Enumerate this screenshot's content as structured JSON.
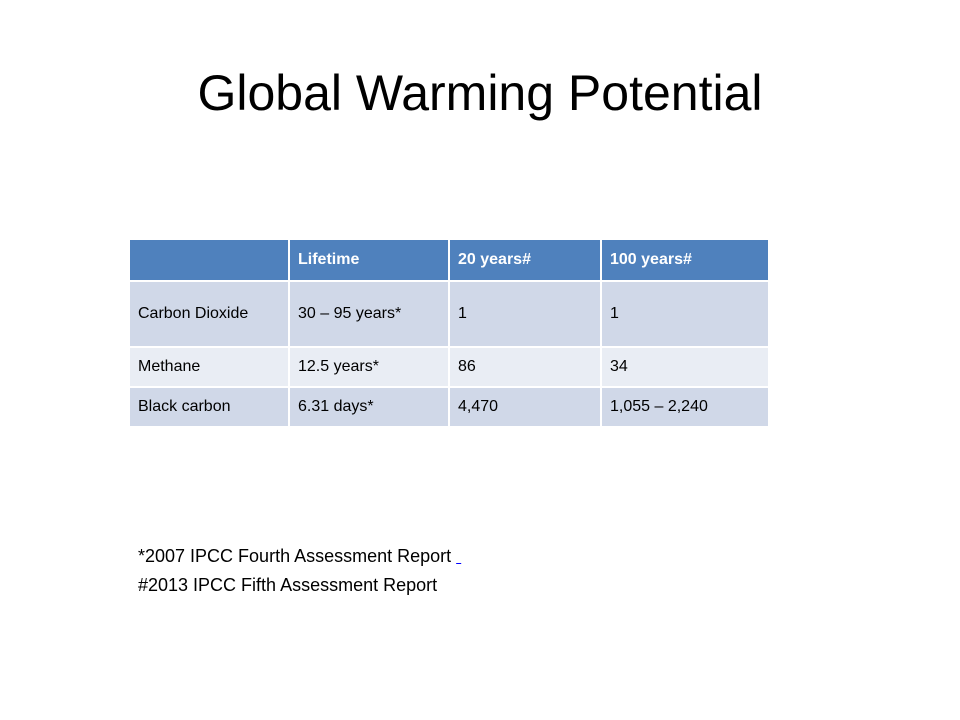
{
  "slide": {
    "title": "Global Warming Potential"
  },
  "table": {
    "headers": [
      "",
      "Lifetime",
      "20 years#",
      "100 years#"
    ],
    "rows": [
      [
        "Carbon Dioxide",
        "30 – 95 years*",
        "1",
        "1"
      ],
      [
        "Methane",
        "12.5 years*",
        "86",
        "34"
      ],
      [
        "Black carbon",
        "6.31 days*",
        "4,470",
        "1,055 – 2,240"
      ]
    ]
  },
  "footnotes": {
    "ar4": "*2007 IPCC Fourth Assessment Report",
    "ar5": "#2013 IPCC Fifth Assessment Report"
  },
  "colors": {
    "header_fill": "#4f81bd",
    "row_fill_dark": "#d0d8e8",
    "row_fill_light": "#e9edf4",
    "link": "#0000ff"
  }
}
